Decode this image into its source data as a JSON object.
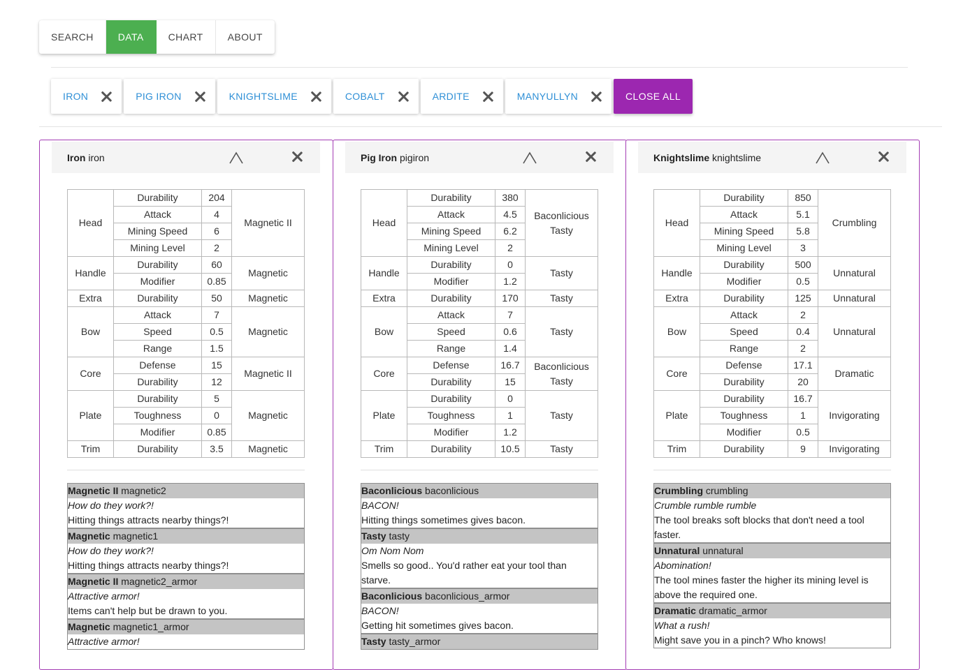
{
  "nav": {
    "tabs": [
      "SEARCH",
      "DATA",
      "CHART",
      "ABOUT"
    ],
    "active": "DATA"
  },
  "chips": [
    "IRON",
    "PIG IRON",
    "KNIGHTSLIME",
    "COBALT",
    "ARDITE",
    "MANYULLYN"
  ],
  "close_all_label": "CLOSE ALL",
  "colors": {
    "accent": "#4caf50",
    "close_all": "#9c27b0",
    "panel_border": "#a43cb4",
    "chip_text": "#2e8fd6"
  },
  "panels": [
    {
      "name": "Iron",
      "id": "iron",
      "parts": [
        {
          "part": "Head",
          "rows": [
            [
              "Durability",
              "204"
            ],
            [
              "Attack",
              "4"
            ],
            [
              "Mining Speed",
              "6"
            ],
            [
              "Mining Level",
              "2"
            ]
          ],
          "traits": [
            "Magnetic II"
          ]
        },
        {
          "part": "Handle",
          "rows": [
            [
              "Durability",
              "60"
            ],
            [
              "Modifier",
              "0.85"
            ]
          ],
          "traits": [
            "Magnetic"
          ]
        },
        {
          "part": "Extra",
          "rows": [
            [
              "Durability",
              "50"
            ]
          ],
          "traits": [
            "Magnetic"
          ]
        },
        {
          "part": "Bow",
          "rows": [
            [
              "Attack",
              "7"
            ],
            [
              "Speed",
              "0.5"
            ],
            [
              "Range",
              "1.5"
            ]
          ],
          "traits": [
            "Magnetic"
          ]
        },
        {
          "part": "Core",
          "rows": [
            [
              "Defense",
              "15"
            ],
            [
              "Durability",
              "12"
            ]
          ],
          "traits": [
            "Magnetic II"
          ]
        },
        {
          "part": "Plate",
          "rows": [
            [
              "Durability",
              "5"
            ],
            [
              "Toughness",
              "0"
            ],
            [
              "Modifier",
              "0.85"
            ]
          ],
          "traits": [
            "Magnetic"
          ]
        },
        {
          "part": "Trim",
          "rows": [
            [
              "Durability",
              "3.5"
            ]
          ],
          "traits": [
            "Magnetic"
          ]
        }
      ],
      "trait_details": [
        {
          "name": "Magnetic II",
          "id": "magnetic2",
          "quote": "How do they work?!",
          "desc": "Hitting things attracts nearby things?!"
        },
        {
          "name": "Magnetic",
          "id": "magnetic1",
          "quote": "How do they work?!",
          "desc": "Hitting things attracts nearby things?!"
        },
        {
          "name": "Magnetic II",
          "id": "magnetic2_armor",
          "quote": "Attractive armor!",
          "desc": "Items can't help but be drawn to you."
        },
        {
          "name": "Magnetic",
          "id": "magnetic1_armor",
          "quote": "Attractive armor!",
          "desc": ""
        }
      ]
    },
    {
      "name": "Pig Iron",
      "id": "pigiron",
      "parts": [
        {
          "part": "Head",
          "rows": [
            [
              "Durability",
              "380"
            ],
            [
              "Attack",
              "4.5"
            ],
            [
              "Mining Speed",
              "6.2"
            ],
            [
              "Mining Level",
              "2"
            ]
          ],
          "traits": [
            "Baconlicious",
            "Tasty"
          ]
        },
        {
          "part": "Handle",
          "rows": [
            [
              "Durability",
              "0"
            ],
            [
              "Modifier",
              "1.2"
            ]
          ],
          "traits": [
            "Tasty"
          ]
        },
        {
          "part": "Extra",
          "rows": [
            [
              "Durability",
              "170"
            ]
          ],
          "traits": [
            "Tasty"
          ]
        },
        {
          "part": "Bow",
          "rows": [
            [
              "Attack",
              "7"
            ],
            [
              "Speed",
              "0.6"
            ],
            [
              "Range",
              "1.4"
            ]
          ],
          "traits": [
            "Tasty"
          ]
        },
        {
          "part": "Core",
          "rows": [
            [
              "Defense",
              "16.7"
            ],
            [
              "Durability",
              "15"
            ]
          ],
          "traits": [
            "Baconlicious",
            "Tasty"
          ]
        },
        {
          "part": "Plate",
          "rows": [
            [
              "Durability",
              "0"
            ],
            [
              "Toughness",
              "1"
            ],
            [
              "Modifier",
              "1.2"
            ]
          ],
          "traits": [
            "Tasty"
          ]
        },
        {
          "part": "Trim",
          "rows": [
            [
              "Durability",
              "10.5"
            ]
          ],
          "traits": [
            "Tasty"
          ]
        }
      ],
      "trait_details": [
        {
          "name": "Baconlicious",
          "id": "baconlicious",
          "quote": "BACON!",
          "desc": "Hitting things sometimes gives bacon."
        },
        {
          "name": "Tasty",
          "id": "tasty",
          "quote": "Om Nom Nom",
          "desc": "Smells so good.. You'd rather eat your tool than starve."
        },
        {
          "name": "Baconlicious",
          "id": "baconlicious_armor",
          "quote": "BACON!",
          "desc": "Getting hit sometimes gives bacon."
        },
        {
          "name": "Tasty",
          "id": "tasty_armor",
          "quote": "",
          "desc": ""
        }
      ]
    },
    {
      "name": "Knightslime",
      "id": "knightslime",
      "parts": [
        {
          "part": "Head",
          "rows": [
            [
              "Durability",
              "850"
            ],
            [
              "Attack",
              "5.1"
            ],
            [
              "Mining Speed",
              "5.8"
            ],
            [
              "Mining Level",
              "3"
            ]
          ],
          "traits": [
            "Crumbling"
          ]
        },
        {
          "part": "Handle",
          "rows": [
            [
              "Durability",
              "500"
            ],
            [
              "Modifier",
              "0.5"
            ]
          ],
          "traits": [
            "Unnatural"
          ]
        },
        {
          "part": "Extra",
          "rows": [
            [
              "Durability",
              "125"
            ]
          ],
          "traits": [
            "Unnatural"
          ]
        },
        {
          "part": "Bow",
          "rows": [
            [
              "Attack",
              "2"
            ],
            [
              "Speed",
              "0.4"
            ],
            [
              "Range",
              "2"
            ]
          ],
          "traits": [
            "Unnatural"
          ]
        },
        {
          "part": "Core",
          "rows": [
            [
              "Defense",
              "17.1"
            ],
            [
              "Durability",
              "20"
            ]
          ],
          "traits": [
            "Dramatic"
          ]
        },
        {
          "part": "Plate",
          "rows": [
            [
              "Durability",
              "16.7"
            ],
            [
              "Toughness",
              "1"
            ],
            [
              "Modifier",
              "0.5"
            ]
          ],
          "traits": [
            "Invigorating"
          ]
        },
        {
          "part": "Trim",
          "rows": [
            [
              "Durability",
              "9"
            ]
          ],
          "traits": [
            "Invigorating"
          ]
        }
      ],
      "trait_details": [
        {
          "name": "Crumbling",
          "id": "crumbling",
          "quote": "Crumble rumble rumble",
          "desc": "The tool breaks soft blocks that don't need a tool faster."
        },
        {
          "name": "Unnatural",
          "id": "unnatural",
          "quote": "Abomination!",
          "desc": "The tool mines faster the higher its mining level is above the required one."
        },
        {
          "name": "Dramatic",
          "id": "dramatic_armor",
          "quote": "What a rush!",
          "desc": "Might save you in a pinch? Who knows!"
        }
      ]
    }
  ]
}
